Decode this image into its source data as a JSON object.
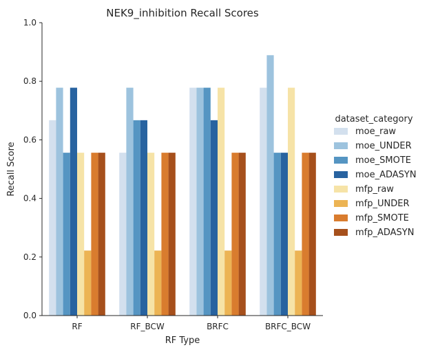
{
  "chart_data": {
    "type": "bar",
    "title": "NEK9_inhibition Recall Scores",
    "xlabel": "RF Type",
    "ylabel": "Recall Score",
    "ylim": [
      0,
      1.0
    ],
    "yticks": [
      "0.0",
      "0.2",
      "0.4",
      "0.6",
      "0.8",
      "1.0"
    ],
    "categories": [
      "RF",
      "RF_BCW",
      "BRFC",
      "BRFC_BCW"
    ],
    "legend_title": "dataset_category",
    "legend_position": "right",
    "series": [
      {
        "name": "moe_raw",
        "color": "#d3e0ee",
        "values": [
          0.667,
          0.556,
          0.778,
          0.778
        ]
      },
      {
        "name": "moe_UNDER",
        "color": "#9dc3de",
        "values": [
          0.778,
          0.778,
          0.778,
          0.889
        ]
      },
      {
        "name": "moe_SMOTE",
        "color": "#5595c2",
        "values": [
          0.556,
          0.667,
          0.778,
          0.556
        ]
      },
      {
        "name": "moe_ADASYN",
        "color": "#2863a0",
        "values": [
          0.778,
          0.667,
          0.667,
          0.556
        ]
      },
      {
        "name": "mfp_raw",
        "color": "#f6e3a7",
        "values": [
          0.556,
          0.556,
          0.778,
          0.778
        ]
      },
      {
        "name": "mfp_UNDER",
        "color": "#ecb454",
        "values": [
          0.222,
          0.222,
          0.222,
          0.222
        ]
      },
      {
        "name": "mfp_SMOTE",
        "color": "#d97c2e",
        "values": [
          0.556,
          0.556,
          0.556,
          0.556
        ]
      },
      {
        "name": "mfp_ADASYN",
        "color": "#a6501c",
        "values": [
          0.556,
          0.556,
          0.556,
          0.556
        ]
      }
    ]
  }
}
